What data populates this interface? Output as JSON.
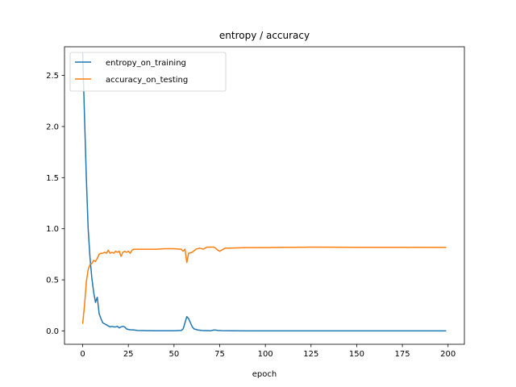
{
  "chart_data": {
    "type": "line",
    "title": "entropy / accuracy",
    "xlabel": "epoch",
    "ylabel": "",
    "xlim": [
      -9.95,
      208.95
    ],
    "ylim": [
      -0.13,
      2.78
    ],
    "xticks": [
      0,
      25,
      50,
      75,
      100,
      125,
      150,
      175,
      200
    ],
    "yticks": [
      0.0,
      0.5,
      1.0,
      1.5,
      2.0,
      2.5
    ],
    "ytick_labels": [
      "0.0",
      "0.5",
      "1.0",
      "1.5",
      "2.0",
      "2.5"
    ],
    "grid": false,
    "legend_position": "top-left",
    "series": [
      {
        "name": "entropy_on_training",
        "color": "#1f77b4",
        "x": [
          0,
          1,
          2,
          3,
          4,
          5,
          6,
          7,
          8,
          9,
          10,
          11,
          12,
          13,
          14,
          15,
          16,
          17,
          18,
          19,
          20,
          21,
          22,
          23,
          24,
          25,
          26,
          28,
          30,
          35,
          40,
          45,
          50,
          54,
          55,
          56,
          57,
          58,
          59,
          60,
          61,
          62,
          63,
          65,
          68,
          70,
          72,
          73,
          74,
          76,
          80,
          90,
          100,
          125,
          150,
          175,
          199
        ],
        "y": [
          2.72,
          2.1,
          1.5,
          1.0,
          0.72,
          0.52,
          0.38,
          0.28,
          0.33,
          0.17,
          0.12,
          0.08,
          0.07,
          0.06,
          0.05,
          0.04,
          0.045,
          0.04,
          0.04,
          0.045,
          0.03,
          0.04,
          0.045,
          0.04,
          0.02,
          0.015,
          0.012,
          0.01,
          0.005,
          0.003,
          0.002,
          0.002,
          0.002,
          0.005,
          0.02,
          0.08,
          0.14,
          0.12,
          0.08,
          0.04,
          0.02,
          0.015,
          0.01,
          0.005,
          0.003,
          0.002,
          0.01,
          0.008,
          0.005,
          0.003,
          0.002,
          0.001,
          0.001,
          0.001,
          0.001,
          0.001,
          0.001
        ]
      },
      {
        "name": "accuracy_on_testing",
        "color": "#ff7f0e",
        "x": [
          0,
          1,
          2,
          3,
          4,
          5,
          6,
          7,
          8,
          9,
          10,
          11,
          12,
          13,
          14,
          15,
          16,
          17,
          18,
          19,
          20,
          21,
          22,
          23,
          24,
          25,
          26,
          27,
          28,
          30,
          35,
          40,
          45,
          50,
          54,
          55,
          56,
          57,
          58,
          60,
          62,
          64,
          66,
          68,
          70,
          72,
          74,
          75,
          76,
          78,
          80,
          90,
          100,
          110,
          125,
          150,
          175,
          199
        ],
        "y": [
          0.07,
          0.25,
          0.48,
          0.6,
          0.65,
          0.66,
          0.69,
          0.68,
          0.71,
          0.75,
          0.76,
          0.76,
          0.77,
          0.76,
          0.79,
          0.76,
          0.77,
          0.76,
          0.78,
          0.77,
          0.78,
          0.73,
          0.77,
          0.78,
          0.77,
          0.78,
          0.76,
          0.79,
          0.8,
          0.8,
          0.8,
          0.8,
          0.805,
          0.805,
          0.8,
          0.78,
          0.8,
          0.67,
          0.76,
          0.77,
          0.8,
          0.81,
          0.8,
          0.82,
          0.82,
          0.82,
          0.79,
          0.78,
          0.79,
          0.81,
          0.81,
          0.815,
          0.815,
          0.818,
          0.82,
          0.818,
          0.818,
          0.817
        ]
      }
    ]
  }
}
